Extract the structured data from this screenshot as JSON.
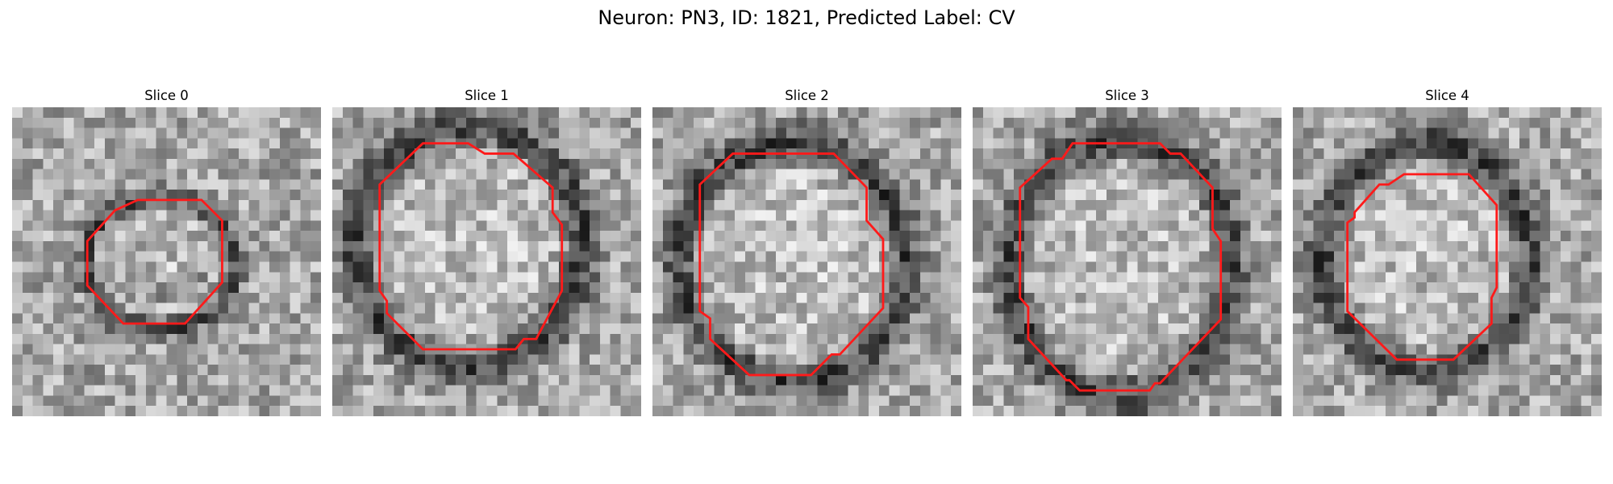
{
  "figure": {
    "title": "Neuron: PN3, ID: 1821, Predicted Label: CV",
    "contour_color": "#ff1a1a",
    "panels": [
      {
        "title": "Slice 0",
        "contour": [
          [
            10,
            10
          ],
          [
            12.2,
            9
          ],
          [
            18.4,
            9
          ],
          [
            20.4,
            11
          ],
          [
            20.4,
            17
          ],
          [
            16.8,
            21
          ],
          [
            10.8,
            21
          ],
          [
            7.3,
            17.3
          ],
          [
            7.3,
            13
          ]
        ],
        "rings": [
          [
            14.4,
            15,
            7.2,
            6.4,
            0.9,
            -25
          ],
          [
            13,
            24,
            5.5,
            3.5,
            0.2,
            40
          ]
        ]
      },
      {
        "title": "Slice 1",
        "contour": [
          [
            4.6,
            7.5
          ],
          [
            8.8,
            3.5
          ],
          [
            13.2,
            3.5
          ],
          [
            14.8,
            4.5
          ],
          [
            17.6,
            4.5
          ],
          [
            21.4,
            7.8
          ],
          [
            21.4,
            10.2
          ],
          [
            22.3,
            11.4
          ],
          [
            22.3,
            17.8
          ],
          [
            19.8,
            22.5
          ],
          [
            18.6,
            22.5
          ],
          [
            17.8,
            23.5
          ],
          [
            8.8,
            23.5
          ],
          [
            5.3,
            20
          ],
          [
            5.3,
            18.8
          ],
          [
            4.6,
            17.8
          ]
        ],
        "rings": [
          [
            13.2,
            13.5,
            11,
            11.6,
            1,
            0
          ]
        ]
      },
      {
        "title": "Slice 2",
        "contour": [
          [
            4.6,
            7.5
          ],
          [
            7.8,
            4.5
          ],
          [
            17.6,
            4.5
          ],
          [
            20.8,
            7.8
          ],
          [
            20.8,
            11
          ],
          [
            22.4,
            12.8
          ],
          [
            22.4,
            19.5
          ],
          [
            18.2,
            24
          ],
          [
            17.4,
            24
          ],
          [
            15.4,
            26
          ],
          [
            9.4,
            26
          ],
          [
            5.6,
            22.5
          ],
          [
            5.6,
            20.5
          ],
          [
            4.6,
            19.8
          ]
        ],
        "rings": [
          [
            13.6,
            15,
            11,
            11.6,
            1,
            0
          ]
        ]
      },
      {
        "title": "Slice 3",
        "contour": [
          [
            4.6,
            7.8
          ],
          [
            7.7,
            5
          ],
          [
            8.7,
            5
          ],
          [
            9.7,
            3.5
          ],
          [
            18.2,
            3.5
          ],
          [
            19.2,
            4.5
          ],
          [
            20.2,
            4.5
          ],
          [
            23.3,
            7.8
          ],
          [
            23.3,
            11.8
          ],
          [
            24.1,
            13
          ],
          [
            24.1,
            20.6
          ],
          [
            18.2,
            26.8
          ],
          [
            17.7,
            26.8
          ],
          [
            17.2,
            27.5
          ],
          [
            10.4,
            27.5
          ],
          [
            9.4,
            26.5
          ],
          [
            9.1,
            26.5
          ],
          [
            5.4,
            22.5
          ],
          [
            5.4,
            19.4
          ],
          [
            4.6,
            18.5
          ]
        ],
        "rings": [
          [
            14.4,
            15.5,
            10.8,
            12.6,
            1,
            0
          ]
        ]
      },
      {
        "title": "Slice 4",
        "contour": [
          [
            6,
            10.2
          ],
          [
            8.4,
            7.5
          ],
          [
            9.3,
            7.5
          ],
          [
            10.8,
            6.5
          ],
          [
            17.1,
            6.5
          ],
          [
            19.8,
            9.5
          ],
          [
            19.8,
            17.5
          ],
          [
            19.3,
            18.5
          ],
          [
            19.3,
            21
          ],
          [
            15.6,
            24.5
          ],
          [
            10.1,
            24.5
          ],
          [
            5.3,
            19.8
          ],
          [
            5.3,
            11.2
          ],
          [
            6,
            10.7
          ]
        ],
        "rings": [
          [
            13,
            14.5,
            10.2,
            11,
            1,
            0
          ]
        ]
      }
    ]
  }
}
